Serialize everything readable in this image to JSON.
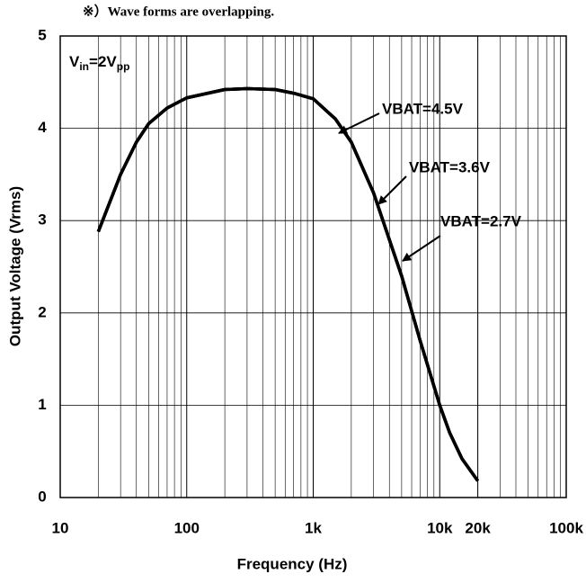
{
  "chart_data": {
    "type": "line",
    "note": "※）Wave forms are overlapping.",
    "vin_label": [
      "V",
      "in",
      "=2V",
      "pp"
    ],
    "xlabel": "Frequency (Hz)",
    "ylabel": "Output Voltage (Vrms)",
    "x": [
      20,
      30,
      40,
      50,
      70,
      100,
      200,
      300,
      500,
      700,
      1000,
      1500,
      2000,
      3000,
      5000,
      7000,
      10000,
      12000,
      15000,
      20000
    ],
    "series": [
      {
        "name": "VBAT=4.5V",
        "color": "#000000",
        "values": [
          2.88,
          3.5,
          3.85,
          4.05,
          4.22,
          4.33,
          4.42,
          4.43,
          4.42,
          4.38,
          4.32,
          4.1,
          3.85,
          3.3,
          2.4,
          1.7,
          1.0,
          0.7,
          0.42,
          0.18
        ]
      },
      {
        "name": "VBAT=3.6V",
        "color": "#000000",
        "values": [
          2.88,
          3.5,
          3.85,
          4.05,
          4.22,
          4.33,
          4.42,
          4.43,
          4.42,
          4.38,
          4.32,
          4.1,
          3.85,
          3.3,
          2.4,
          1.7,
          1.0,
          0.7,
          0.42,
          0.18
        ]
      },
      {
        "name": "VBAT=2.7V",
        "color": "#000000",
        "values": [
          2.88,
          3.5,
          3.85,
          4.05,
          4.22,
          4.33,
          4.42,
          4.43,
          4.42,
          4.38,
          4.32,
          4.1,
          3.85,
          3.3,
          2.4,
          1.7,
          1.0,
          0.7,
          0.42,
          0.18
        ]
      }
    ],
    "xscale": "log",
    "xlim": [
      10,
      100000
    ],
    "xticks": [
      10,
      100,
      {
        "value": 1000,
        "label": "1k"
      },
      {
        "value": 10000,
        "label": "10k"
      },
      {
        "value": 20000,
        "label": "20k"
      },
      {
        "value": 100000,
        "label": "100k"
      }
    ],
    "ylim": [
      0,
      5
    ],
    "yticks": [
      0,
      1,
      2,
      3,
      4,
      5
    ],
    "grid": true
  }
}
